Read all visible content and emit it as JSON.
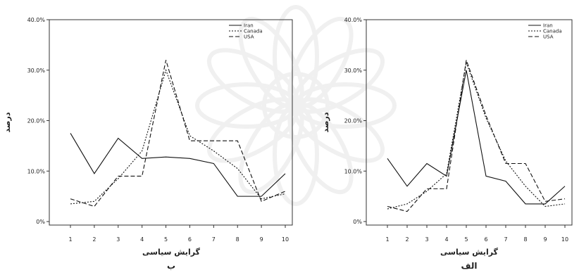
{
  "chart_data": [
    {
      "type": "line",
      "panel_label": "ب",
      "xlabel": "گرایش سیاسی",
      "ylabel": "درصد",
      "x": [
        1,
        2,
        3,
        4,
        5,
        6,
        7,
        8,
        9,
        10
      ],
      "ylim": [
        0,
        40
      ],
      "yticks": [
        "0%",
        "10.0%",
        "20.0%",
        "30.0%",
        "40.0%"
      ],
      "legend_position": "top-right",
      "series": [
        {
          "name": "Iran",
          "dash": "solid",
          "values": [
            17.5,
            9.5,
            16.5,
            12.5,
            12.8,
            12.5,
            11.5,
            5.0,
            5.0,
            9.5
          ]
        },
        {
          "name": "Canada",
          "dash": "dotted",
          "values": [
            3.5,
            4.0,
            8.5,
            14.0,
            30.0,
            17.0,
            14.0,
            10.5,
            4.5,
            5.5
          ]
        },
        {
          "name": "USA",
          "dash": "dashed",
          "values": [
            4.5,
            3.0,
            9.0,
            9.0,
            32.0,
            16.0,
            16.0,
            16.0,
            4.0,
            6.0
          ]
        }
      ]
    },
    {
      "type": "line",
      "panel_label": "الف",
      "xlabel": "گرایش سیاسی",
      "ylabel": "درصد",
      "x": [
        1,
        2,
        3,
        4,
        5,
        6,
        7,
        8,
        9,
        10
      ],
      "ylim": [
        0,
        40
      ],
      "yticks": [
        "0%",
        "10.0%",
        "20.0%",
        "30.0%",
        "40.0%"
      ],
      "legend_position": "top-right",
      "series": [
        {
          "name": "Iran",
          "dash": "solid",
          "values": [
            12.5,
            7.0,
            11.5,
            9.0,
            30.0,
            9.0,
            8.0,
            3.5,
            3.5,
            7.0
          ]
        },
        {
          "name": "Canada",
          "dash": "dotted",
          "values": [
            2.5,
            3.5,
            6.0,
            9.5,
            31.5,
            20.5,
            12.0,
            7.0,
            3.0,
            3.5
          ]
        },
        {
          "name": "USA",
          "dash": "dashed",
          "values": [
            3.0,
            2.0,
            6.5,
            6.5,
            32.0,
            21.0,
            11.5,
            11.5,
            4.0,
            4.5
          ]
        }
      ]
    }
  ]
}
